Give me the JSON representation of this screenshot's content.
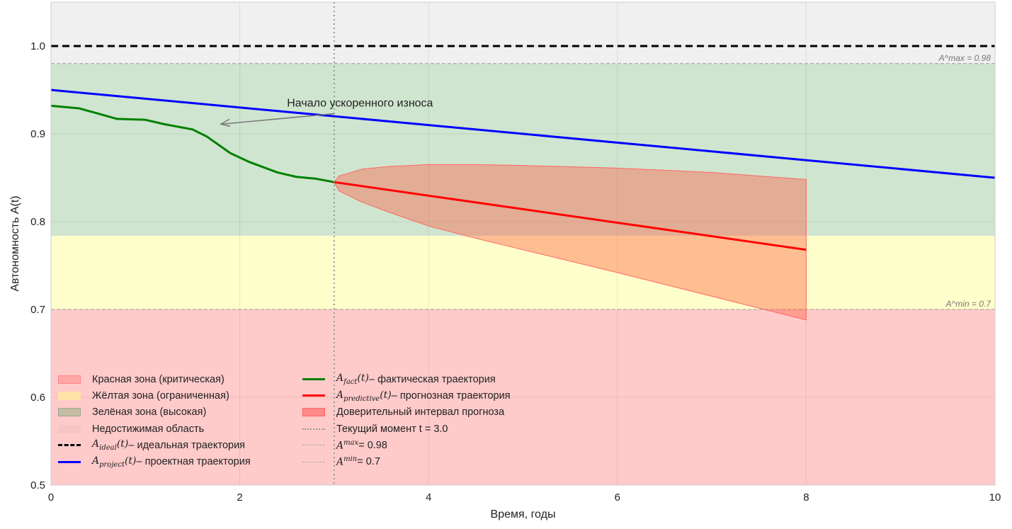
{
  "chart_data": {
    "type": "line",
    "xlabel": "Время, годы",
    "ylabel": "Автономность A(t)",
    "xlim": [
      0,
      10
    ],
    "ylim": [
      0.5,
      1.05
    ],
    "xticks": [
      0,
      2,
      4,
      6,
      8,
      10
    ],
    "yticks": [
      0.5,
      0.6,
      0.7,
      0.8,
      0.9,
      1.0
    ],
    "grid": true,
    "zones": [
      {
        "name": "Красная зона (критическая)",
        "from": 0.5,
        "to": 0.7,
        "color": "#ffcaca"
      },
      {
        "name": "Жёлтая зона (ограниченная)",
        "from": 0.7,
        "to": 0.784,
        "color": "#ffffcb"
      },
      {
        "name": "Зелёная зона (высокая)",
        "from": 0.784,
        "to": 0.98,
        "color": "#cfe5cf"
      },
      {
        "name": "Недостижимая область",
        "from": 0.98,
        "to": 1.05,
        "color": "#f0f0f0"
      }
    ],
    "series": [
      {
        "name": "A_ideal(t) – идеальная траектория",
        "color": "#000000",
        "style": "dashed",
        "x": [
          0,
          10
        ],
        "y": [
          1.0,
          1.0
        ]
      },
      {
        "name": "A_project(t) – проектная траектория",
        "color": "#0000ff",
        "style": "solid",
        "x": [
          0,
          10
        ],
        "y": [
          0.95,
          0.85
        ]
      },
      {
        "name": "A_fact(t) – фактическая траектория",
        "color": "#008000",
        "style": "solid",
        "x": [
          0,
          0.3,
          0.5,
          0.7,
          1.0,
          1.2,
          1.5,
          1.65,
          1.9,
          2.1,
          2.4,
          2.6,
          2.8,
          3.0
        ],
        "y": [
          0.932,
          0.929,
          0.923,
          0.917,
          0.916,
          0.911,
          0.905,
          0.897,
          0.878,
          0.868,
          0.856,
          0.851,
          0.849,
          0.845
        ]
      },
      {
        "name": "A_predictive(t) – прогнозная траектория",
        "color": "#ff0000",
        "style": "solid",
        "x": [
          3,
          8
        ],
        "y": [
          0.845,
          0.768
        ]
      }
    ],
    "confidence_interval": {
      "name": "Доверительный интервал прогноза",
      "x": [
        3,
        3.05,
        3.3,
        3.6,
        4,
        4.5,
        5,
        6,
        7,
        8
      ],
      "upper": [
        0.845,
        0.852,
        0.86,
        0.863,
        0.865,
        0.865,
        0.864,
        0.861,
        0.856,
        0.848
      ],
      "lower": [
        0.845,
        0.835,
        0.822,
        0.81,
        0.795,
        0.781,
        0.768,
        0.742,
        0.715,
        0.688
      ]
    },
    "current_time": {
      "label": "Текущий момент t = 3.0",
      "t": 3.0
    },
    "thresholds": [
      {
        "label": "A^max = 0.98",
        "value": 0.98
      },
      {
        "label": "A^min = 0.7",
        "value": 0.7
      }
    ],
    "annotation": {
      "text": "Начало ускоренного износа",
      "text_at": [
        2.5,
        0.935
      ],
      "arrow_to": [
        1.8,
        0.911
      ],
      "arrow_from": [
        3.0,
        0.923
      ]
    },
    "legend_position": "lower-left"
  },
  "legend": {
    "red": "Красная зона (критическая)",
    "yellow": "Жёлтая зона (ограниченная)",
    "green": "Зелёная зона (высокая)",
    "unreach": "Недостижимая область",
    "ideal": " – идеальная траектория",
    "project": " – проектная траектория",
    "fact": " – фактическая траектория",
    "pred": " – прогнозная траектория",
    "ci": "Доверительный интервал прогноза",
    "now": "Текущий момент t = 3.0",
    "amax": " = 0.98",
    "amin": " = 0.7"
  }
}
